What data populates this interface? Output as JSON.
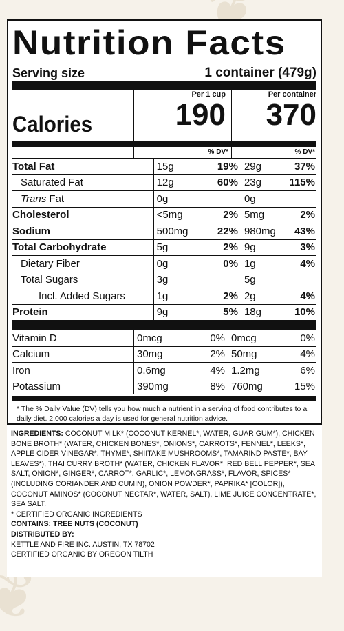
{
  "title": "Nutrition Facts",
  "serving": {
    "label": "Serving size",
    "value": "1 container (479g)"
  },
  "calories": {
    "label": "Calories",
    "per_cup_header": "Per 1 cup",
    "per_cup_value": "190",
    "per_container_header": "Per container",
    "per_container_value": "370"
  },
  "dv_header": "% DV*",
  "nutrients": [
    {
      "name": "Total Fat",
      "bold": true,
      "indent": 0,
      "a1": "15g",
      "p1": "19%",
      "a2": "29g",
      "p2": "37%"
    },
    {
      "name": "Saturated Fat",
      "bold": false,
      "indent": 1,
      "a1": "12g",
      "p1": "60%",
      "a2": "23g",
      "p2": "115%"
    },
    {
      "name": "Trans Fat",
      "bold": false,
      "indent": 1,
      "a1": "0g",
      "p1": "",
      "a2": "0g",
      "p2": ""
    },
    {
      "name": "Cholesterol",
      "bold": true,
      "indent": 0,
      "a1": "<5mg",
      "p1": "2%",
      "a2": "5mg",
      "p2": "2%"
    },
    {
      "name": "Sodium",
      "bold": true,
      "indent": 0,
      "a1": "500mg",
      "p1": "22%",
      "a2": "980mg",
      "p2": "43%"
    },
    {
      "name": "Total Carbohydrate",
      "bold": true,
      "indent": 0,
      "a1": "5g",
      "p1": "2%",
      "a2": "9g",
      "p2": "3%"
    },
    {
      "name": "Dietary Fiber",
      "bold": false,
      "indent": 1,
      "a1": "0g",
      "p1": "0%",
      "a2": "1g",
      "p2": "4%"
    },
    {
      "name": "Total Sugars",
      "bold": false,
      "indent": 1,
      "a1": "3g",
      "p1": "",
      "a2": "5g",
      "p2": ""
    },
    {
      "name": "Incl. Added Sugars",
      "bold": false,
      "indent": 2,
      "a1": "1g",
      "p1": "2%",
      "a2": "2g",
      "p2": "4%"
    },
    {
      "name": "Protein",
      "bold": true,
      "indent": 0,
      "a1": "9g",
      "p1": "5%",
      "a2": "18g",
      "p2": "10%"
    }
  ],
  "vitamins": [
    {
      "name": "Vitamin D",
      "a1": "0mcg",
      "p1": "0%",
      "a2": "0mcg",
      "p2": "0%"
    },
    {
      "name": "Calcium",
      "a1": "30mg",
      "p1": "2%",
      "a2": "50mg",
      "p2": "4%"
    },
    {
      "name": "Iron",
      "a1": "0.6mg",
      "p1": "4%",
      "a2": "1.2mg",
      "p2": "6%"
    },
    {
      "name": "Potassium",
      "a1": "390mg",
      "p1": "8%",
      "a2": "760mg",
      "p2": "15%"
    }
  ],
  "footnote": "* The % Daily Value (DV) tells you how much a nutrient in a serving of food contributes to a daily diet. 2,000 calories a day is used for general nutrition advice.",
  "ingredients_label": "INGREDIENTS:",
  "ingredients_text": "COCONUT MILK* (COCONUT KERNEL*, WATER, GUAR GUM*), CHICKEN BONE BROTH* (WATER, CHICKEN BONES*, ONIONS*, CARROTS*, FENNEL*, LEEKS*, APPLE CIDER VINEGAR*, THYME*, SHIITAKE MUSHROOMS*, TAMARIND PASTE*, BAY LEAVES*), THAI CURRY BROTH* (WATER, CHICKEN FLAVOR*, RED BELL PEPPER*, SEA SALT, ONION*, GINGER*, CARROT*, GARLIC*, LEMONGRASS*, FLAVOR, SPICES* (INCLUDING CORIANDER AND CUMIN), ONION POWDER*, PAPRIKA* [COLOR]), COCONUT AMINOS* (COCONUT NECTAR*, WATER, SALT), LIME JUICE CONCENTRATE*, SEA SALT.",
  "organic_note": "* CERTIFIED ORGANIC INGREDIENTS",
  "contains": "CONTAINS: TREE NUTS (COCONUT)",
  "distributed_label": "DISTRIBUTED BY:",
  "distributor": "KETTLE AND FIRE INC. AUSTIN, TX 78702",
  "certifier": "CERTIFIED ORGANIC BY OREGON TILTH"
}
